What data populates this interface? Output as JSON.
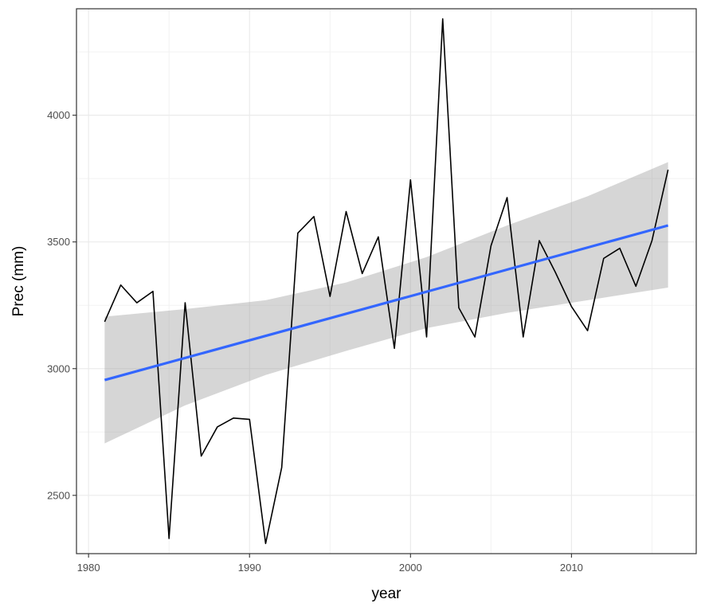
{
  "chart_data": {
    "type": "line",
    "title": "",
    "xlabel": "year",
    "ylabel": "Prec (mm)",
    "xlim": [
      1979.25,
      2017.75
    ],
    "ylim": [
      2270,
      4420
    ],
    "x_ticks": [
      1980,
      1990,
      2000,
      2010
    ],
    "x_tick_labels": [
      "1980",
      "1990",
      "2000",
      "2010"
    ],
    "y_ticks": [
      2500,
      3000,
      3500,
      4000
    ],
    "y_tick_labels": [
      "2500",
      "3000",
      "3500",
      "4000"
    ],
    "grid": true,
    "series": [
      {
        "name": "Prec",
        "color": "#000000",
        "x": [
          1981,
          1982,
          1983,
          1984,
          1985,
          1986,
          1987,
          1988,
          1989,
          1990,
          1991,
          1992,
          1993,
          1994,
          1995,
          1996,
          1997,
          1998,
          1999,
          2000,
          2001,
          2002,
          2003,
          2004,
          2005,
          2006,
          2007,
          2008,
          2009,
          2010,
          2011,
          2012,
          2013,
          2014,
          2015,
          2016
        ],
        "values": [
          3185,
          3330,
          3260,
          3305,
          2330,
          3260,
          2655,
          2770,
          2805,
          2800,
          2310,
          2610,
          3535,
          3600,
          3285,
          3620,
          3375,
          3520,
          3080,
          3745,
          3125,
          4380,
          3240,
          3125,
          3485,
          3675,
          3125,
          3505,
          3380,
          3245,
          3150,
          3435,
          3475,
          3325,
          3505,
          3785
        ]
      }
    ],
    "trend": {
      "name": "linear fit",
      "color": "#3366FF",
      "x": [
        1981,
        2016
      ],
      "values": [
        2955,
        3565
      ]
    },
    "confidence_band": {
      "color": "#999999",
      "x": [
        1981,
        1986,
        1991,
        1996,
        2001,
        2006,
        2011,
        2016
      ],
      "lower": [
        2705,
        2855,
        2975,
        3070,
        3160,
        3220,
        3270,
        3320
      ],
      "upper": [
        3205,
        3235,
        3270,
        3340,
        3440,
        3565,
        3680,
        3815
      ]
    }
  }
}
